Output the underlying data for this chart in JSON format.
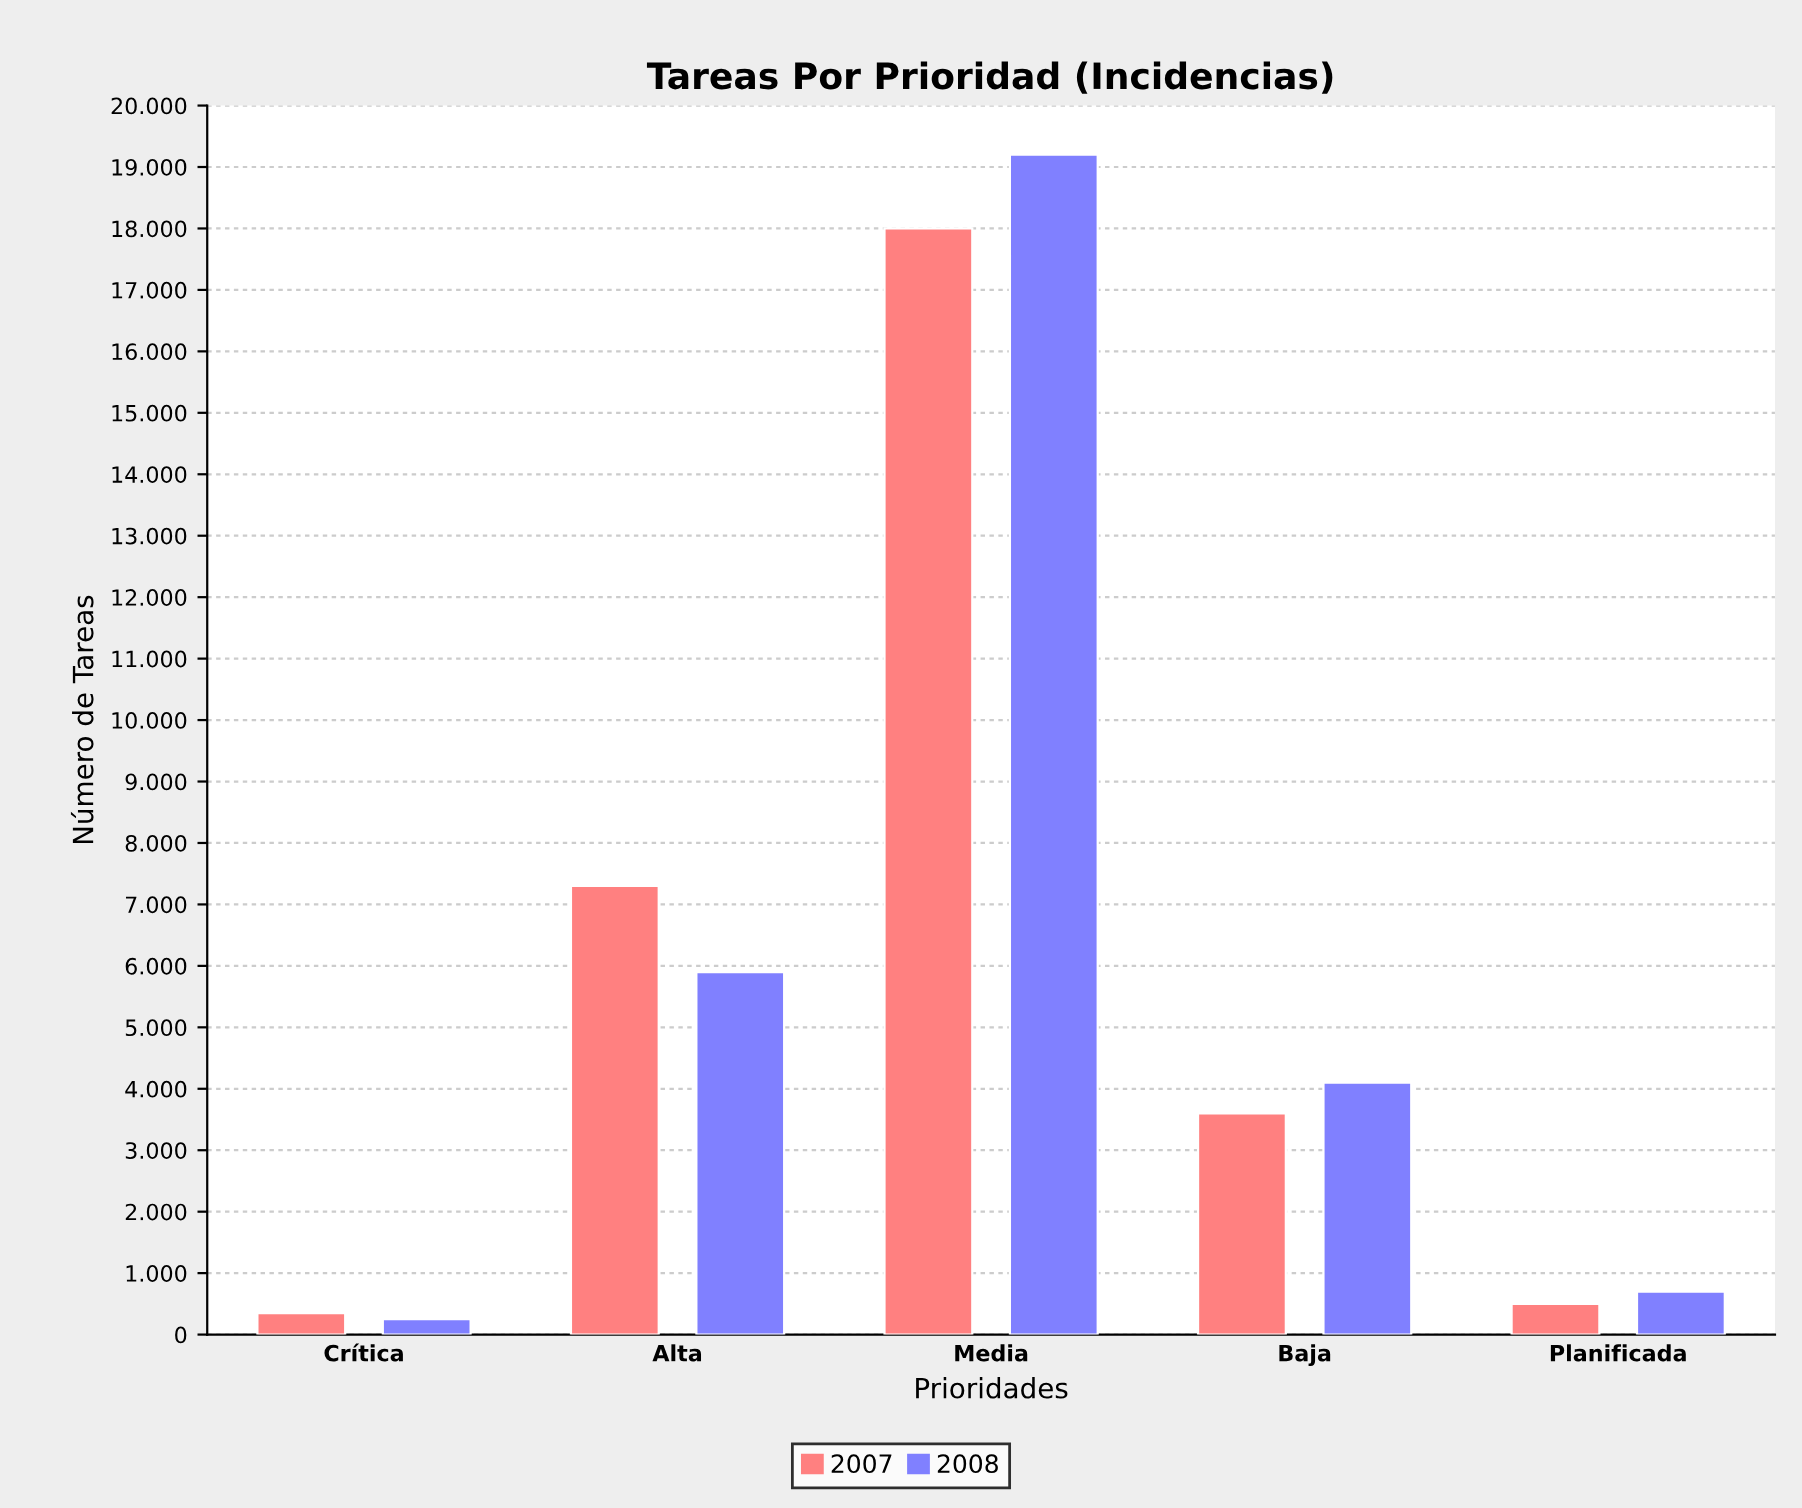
{
  "chart_data": {
    "type": "bar",
    "title": "Tareas Por Prioridad (Incidencias)",
    "xlabel": "Prioridades",
    "ylabel": "Número de Tareas",
    "categories": [
      "Crítica",
      "Alta",
      "Media",
      "Baja",
      "Planificada"
    ],
    "series": [
      {
        "name": "2007",
        "color": "#ff8080",
        "values": [
          350,
          7300,
          18000,
          3600,
          500
        ]
      },
      {
        "name": "2008",
        "color": "#8080ff",
        "values": [
          250,
          5900,
          19200,
          4100,
          700
        ]
      }
    ],
    "ylim": [
      0,
      20000
    ],
    "yticks": [
      {
        "value": 0,
        "label": "0"
      },
      {
        "value": 1000,
        "label": "1.000"
      },
      {
        "value": 2000,
        "label": "2.000"
      },
      {
        "value": 3000,
        "label": "3.000"
      },
      {
        "value": 4000,
        "label": "4.000"
      },
      {
        "value": 5000,
        "label": "5.000"
      },
      {
        "value": 6000,
        "label": "6.000"
      },
      {
        "value": 7000,
        "label": "7.000"
      },
      {
        "value": 8000,
        "label": "8.000"
      },
      {
        "value": 9000,
        "label": "9.000"
      },
      {
        "value": 10000,
        "label": "10.000"
      },
      {
        "value": 11000,
        "label": "11.000"
      },
      {
        "value": 12000,
        "label": "12.000"
      },
      {
        "value": 13000,
        "label": "13.000"
      },
      {
        "value": 14000,
        "label": "14.000"
      },
      {
        "value": 15000,
        "label": "15.000"
      },
      {
        "value": 16000,
        "label": "16.000"
      },
      {
        "value": 17000,
        "label": "17.000"
      },
      {
        "value": 18000,
        "label": "18.000"
      },
      {
        "value": 19000,
        "label": "19.000"
      },
      {
        "value": 20000,
        "label": "20.000"
      }
    ],
    "grid": "y",
    "legend": "bottom"
  }
}
